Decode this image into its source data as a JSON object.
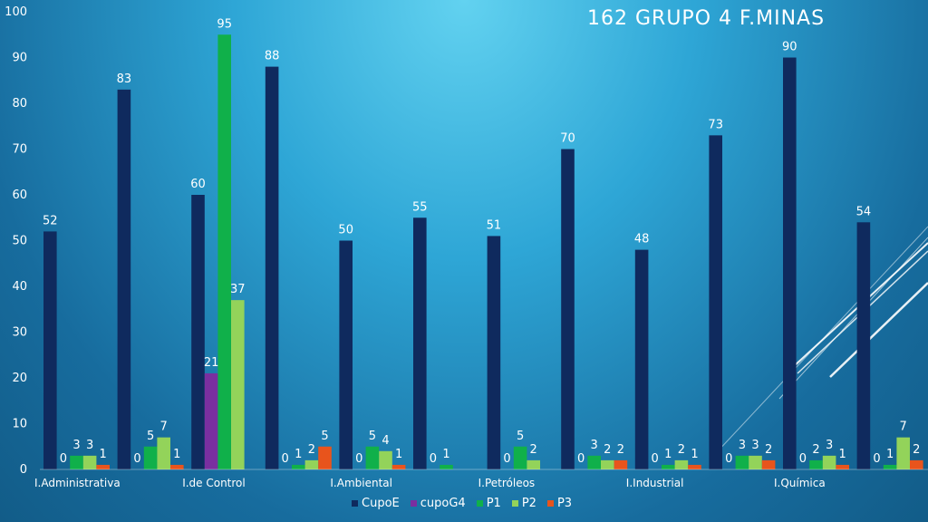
{
  "chart_data": {
    "type": "bar",
    "title": "162  GRUPO 4  F.MINAS",
    "xlabel": "",
    "ylabel": "",
    "ylim": [
      0,
      100
    ],
    "yticks": [
      0,
      10,
      20,
      30,
      40,
      50,
      60,
      70,
      80,
      90,
      100
    ],
    "grid": false,
    "legend_position": "bottom",
    "groups": [
      {
        "label": "I.Administrativa",
        "values": [
          52,
          0,
          3,
          3,
          1
        ]
      },
      {
        "label": "",
        "values": [
          83,
          0,
          5,
          7,
          1
        ]
      },
      {
        "label": "I.de Control",
        "values": [
          60,
          21,
          95,
          37,
          null
        ]
      },
      {
        "label": "",
        "values": [
          88,
          0,
          1,
          2,
          5
        ]
      },
      {
        "label": "I.Ambiental",
        "values": [
          50,
          0,
          5,
          4,
          1
        ]
      },
      {
        "label": "",
        "values": [
          55,
          0,
          1,
          null,
          null
        ]
      },
      {
        "label": "I.Petróleos",
        "values": [
          51,
          0,
          5,
          2,
          null
        ]
      },
      {
        "label": "",
        "values": [
          70,
          0,
          3,
          2,
          2
        ]
      },
      {
        "label": "I.Industrial",
        "values": [
          48,
          0,
          1,
          2,
          1
        ]
      },
      {
        "label": "",
        "values": [
          73,
          0,
          3,
          3,
          2
        ]
      },
      {
        "label": "I.Química",
        "values": [
          90,
          0,
          2,
          3,
          1
        ]
      },
      {
        "label": "",
        "values": [
          54,
          0,
          1,
          7,
          2
        ]
      }
    ],
    "series": [
      {
        "name": "CupoE",
        "color": "#0f2a5e"
      },
      {
        "name": "cupoG4",
        "color": "#7a2fa0"
      },
      {
        "name": "P1",
        "color": "#10b04a"
      },
      {
        "name": "P2",
        "color": "#93d35a"
      },
      {
        "name": "P3",
        "color": "#e8541c"
      }
    ]
  }
}
